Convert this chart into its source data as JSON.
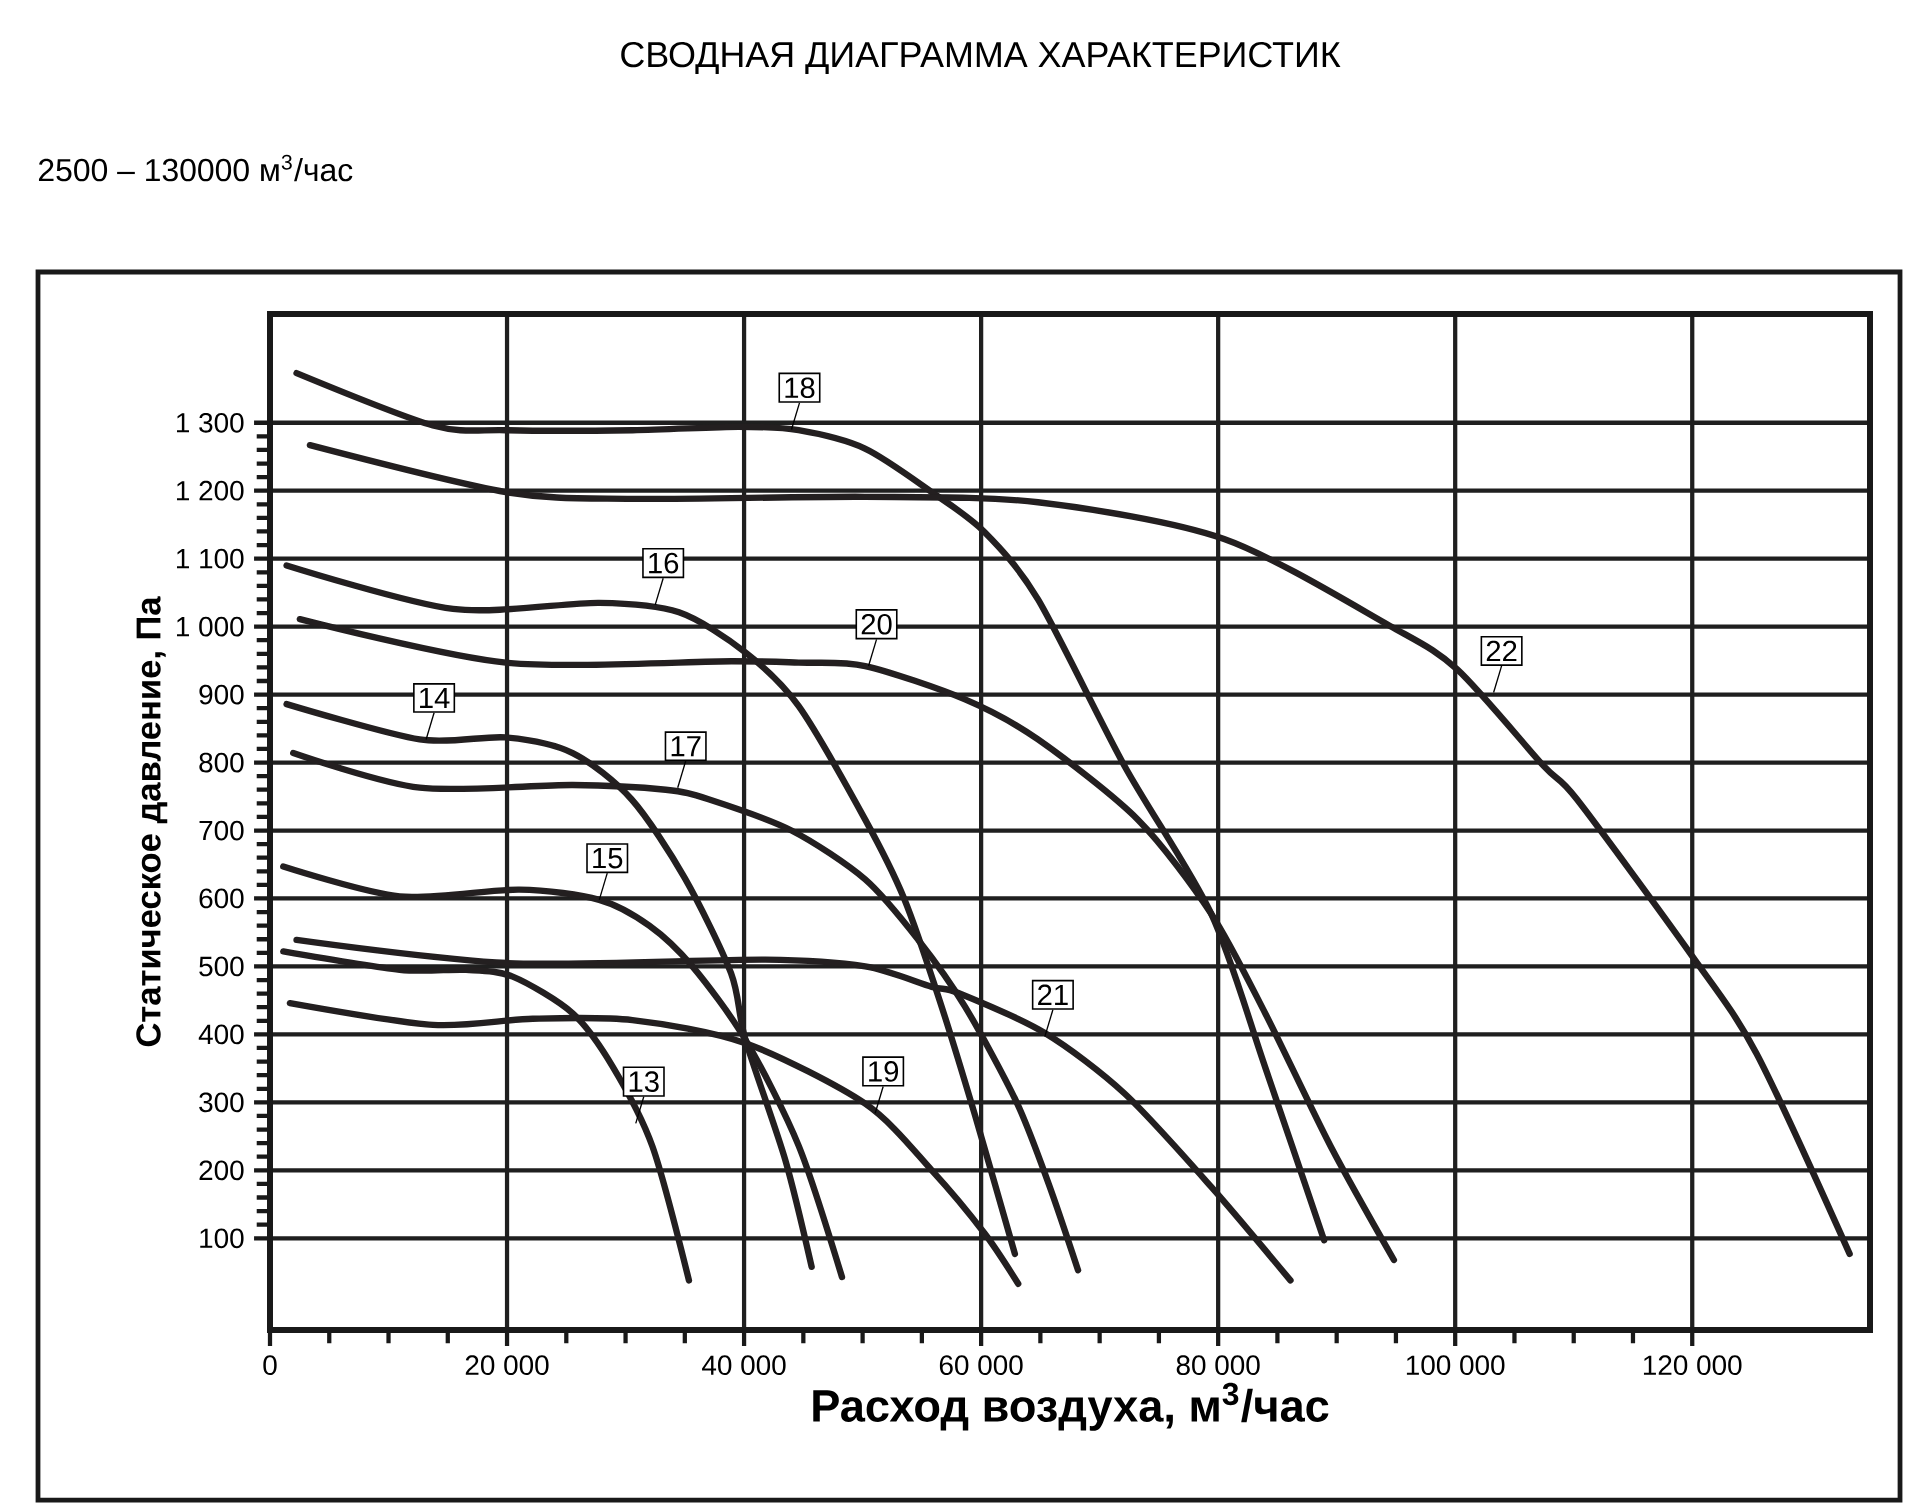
{
  "chart_data": {
    "type": "line",
    "title": "СВОДНАЯ ДИАГРАММА ХАРАКТЕРИСТИК",
    "subtitle": "2500 – 130000 м$^{3}$/час",
    "xlabel": "Расход воздуха, м$^{3}$/час",
    "ylabel": "Статическое давление, Па",
    "xlim": [
      0,
      135000
    ],
    "ylim": [
      -35,
      1460
    ],
    "xticks": [
      0,
      {
        "value": 20000,
        "label": "20 000"
      },
      {
        "value": 40000,
        "label": "40 000"
      },
      {
        "value": 60000,
        "label": "60 000"
      },
      {
        "value": 80000,
        "label": "80 000"
      },
      {
        "value": 100000,
        "label": "100 000"
      },
      {
        "value": 120000,
        "label": "120 000"
      }
    ],
    "yticks": [
      100,
      200,
      300,
      400,
      500,
      600,
      700,
      800,
      900,
      {
        "value": 1000,
        "label": "1 000"
      },
      {
        "value": 1100,
        "label": "1 100"
      },
      {
        "value": 1200,
        "label": "1 200"
      },
      {
        "value": 1300,
        "label": "1 300"
      }
    ],
    "grid": true,
    "series": [
      {
        "color": "#231f20",
        "x": [
          1120,
          10940,
          16550,
          20480,
          25540,
          28900,
          32270,
          35350
        ],
        "values": [
          522,
          495,
          495,
          485,
          431,
          353,
          235,
          38
        ]
      },
      {
        "color": "#231f20",
        "x": [
          1400,
          12630,
          19920,
          25540,
          30500,
          35000,
          38900,
          40120,
          43480,
          45700
        ],
        "values": [
          886,
          834,
          837,
          814,
          746,
          630,
          490,
          392,
          215,
          58
        ]
      },
      {
        "color": "#231f20",
        "x": [
          1120,
          10940,
          21040,
          27780,
          32000,
          35640,
          40120,
          44610,
          48260
        ],
        "values": [
          647,
          603,
          613,
          598,
          560,
          500,
          392,
          236,
          43
        ]
      },
      {
        "color": "#231f20",
        "x": [
          1400,
          15440,
          27780,
          34510,
          40120,
          44610,
          50220,
          53500,
          56500,
          59500,
          62850
        ],
        "values": [
          1090,
          1026,
          1035,
          1021,
          962,
          883,
          716,
          600,
          450,
          280,
          77
        ]
      },
      {
        "color": "#231f20",
        "x": [
          1960,
          12630,
          25540,
          33390,
          37000,
          44000,
          50220,
          54700,
          58640,
          63000,
          65700,
          68180
        ],
        "values": [
          814,
          763,
          767,
          760,
          746,
          700,
          628,
          539,
          441,
          300,
          180,
          53
        ]
      },
      {
        "color": "#231f20",
        "x": [
          2240,
          13750,
          19900,
          30600,
          39560,
          44600,
          50200,
          55840,
          60300,
          64800,
          72100,
          79400,
          84000,
          88940
        ],
        "values": [
          1373,
          1296,
          1289,
          1289,
          1294,
          1289,
          1262,
          1198,
          1139,
          1040,
          795,
          578,
          350,
          97
        ]
      },
      {
        "color": "#231f20",
        "x": [
          1680,
          13750,
          22170,
          30580,
          40120,
          50220,
          55840,
          60300,
          63130
        ],
        "values": [
          446,
          414,
          423,
          421,
          387,
          298,
          200,
          107,
          33
        ]
      },
      {
        "color": "#231f20",
        "x": [
          2520,
          19900,
          38970,
          44610,
          50220,
          58640,
          64800,
          73230,
          79400,
          84000,
          89500,
          94830
        ],
        "values": [
          1011,
          947,
          949,
          947,
          942,
          893,
          834,
          716,
          578,
          430,
          235,
          68
        ]
      },
      {
        "color": "#231f20",
        "x": [
          2240,
          20000,
          41800,
          50220,
          55840,
          58080,
          65380,
          72100,
          79400,
          86100
        ],
        "values": [
          539,
          505,
          510,
          500,
          470,
          461,
          402,
          313,
          176,
          38
        ]
      },
      {
        "color": "#231f20",
        "x": [
          3370,
          19900,
          30560,
          50200,
          64800,
          80500,
          94500,
          100170,
          107460,
          110270,
          119800,
          125420,
          133280
        ],
        "values": [
          1267,
          1198,
          1188,
          1191,
          1183,
          1129,
          1001,
          937,
          795,
          746,
          520,
          372,
          77
        ]
      }
    ],
    "annotations": [
      {
        "text": "13",
        "x": 30860,
        "y": 269
      },
      {
        "text": "14",
        "x": 13170,
        "y": 834
      },
      {
        "text": "15",
        "x": 27780,
        "y": 598
      },
      {
        "text": "16",
        "x": 32500,
        "y": 1032
      },
      {
        "text": "17",
        "x": 34400,
        "y": 763
      },
      {
        "text": "18",
        "x": 44000,
        "y": 1290
      },
      {
        "text": "19",
        "x": 51060,
        "y": 284
      },
      {
        "text": "20",
        "x": 50500,
        "y": 942
      },
      {
        "text": "21",
        "x": 65380,
        "y": 397
      },
      {
        "text": "22",
        "x": 103240,
        "y": 903
      }
    ]
  }
}
